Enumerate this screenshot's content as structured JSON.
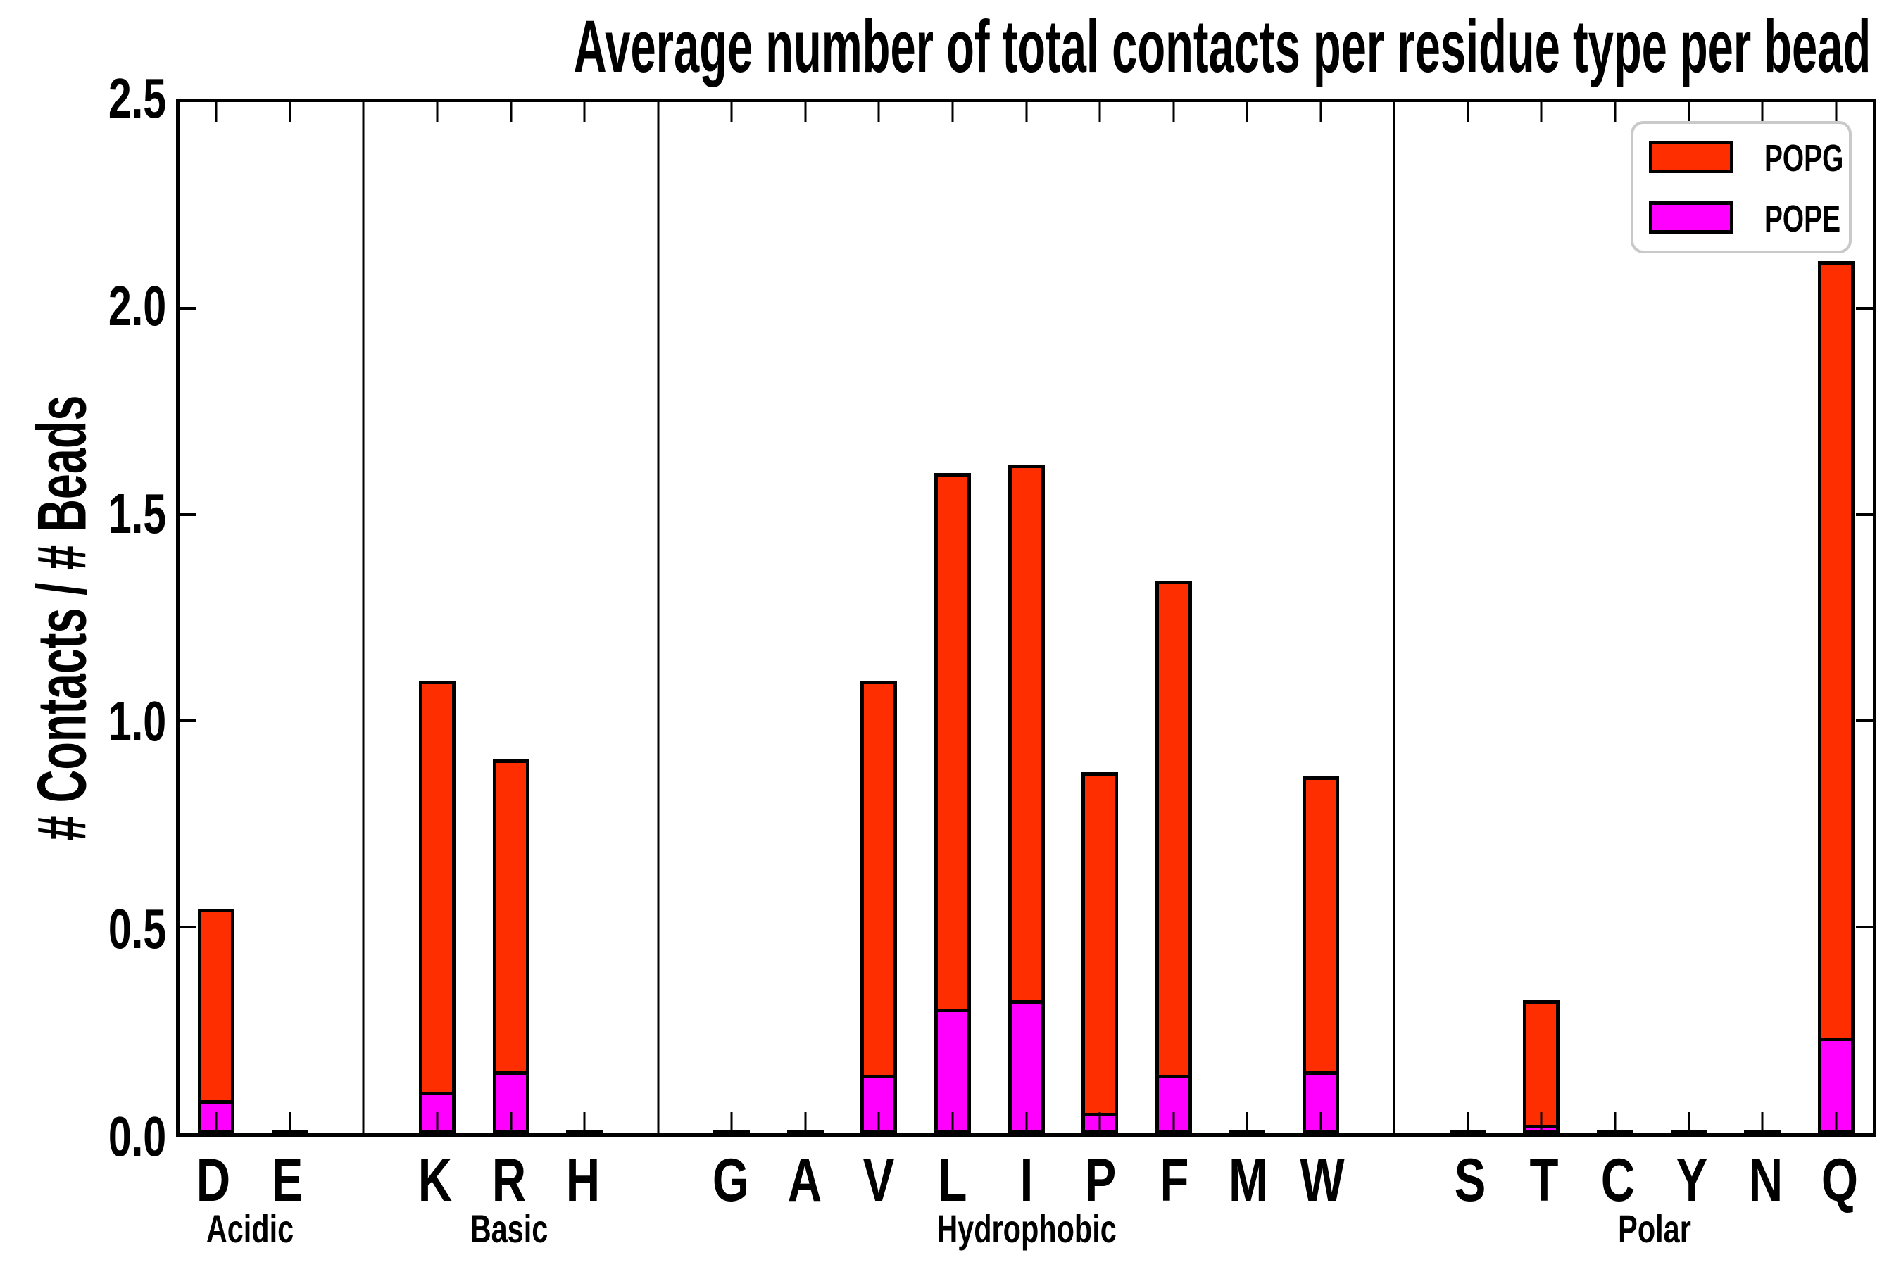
{
  "title": "Average number of total contacts per residue type per bead",
  "ylabel": "# Contacts / # Beads",
  "legend": {
    "entries": [
      {
        "label": "POPG",
        "color": "#FF2E00"
      },
      {
        "label": "POPE",
        "color": "#FF00FF"
      }
    ]
  },
  "colors": {
    "popg": "#FF2E00",
    "pope": "#FF00FF",
    "axis": "#000000",
    "legend_border": "#c9c9c9"
  },
  "y_tick_labels": [
    "0.0",
    "0.5",
    "1.0",
    "1.5",
    "2.0",
    "2.5"
  ],
  "chart_data": {
    "type": "bar",
    "stacked": true,
    "title": "Average number of total contacts per residue type per bead",
    "xlabel": "",
    "ylabel": "# Contacts / # Beads",
    "ylim": [
      0,
      2.5
    ],
    "y_ticks": [
      0.0,
      0.5,
      1.0,
      1.5,
      2.0,
      2.5
    ],
    "grid": false,
    "legend_position": "upper right",
    "categories": [
      "D",
      "E",
      "K",
      "R",
      "H",
      "G",
      "A",
      "V",
      "L",
      "I",
      "P",
      "F",
      "M",
      "W",
      "S",
      "T",
      "C",
      "Y",
      "N",
      "Q"
    ],
    "groups": [
      {
        "label": "Acidic",
        "categories": [
          "D",
          "E"
        ]
      },
      {
        "label": "Basic",
        "categories": [
          "K",
          "R",
          "H"
        ]
      },
      {
        "label": "Hydrophobic",
        "categories": [
          "G",
          "A",
          "V",
          "L",
          "I",
          "P",
          "F",
          "M",
          "W"
        ]
      },
      {
        "label": "Polar",
        "categories": [
          "S",
          "T",
          "C",
          "Y",
          "N",
          "Q"
        ]
      }
    ],
    "series": [
      {
        "name": "POPE",
        "color": "#FF00FF",
        "values": [
          0.08,
          0.0,
          0.1,
          0.15,
          0.0,
          0.0,
          0.0,
          0.14,
          0.3,
          0.32,
          0.05,
          0.14,
          0.0,
          0.15,
          0.0,
          0.02,
          0.0,
          0.0,
          0.0,
          0.23
        ]
      },
      {
        "name": "POPG",
        "color": "#FF2E00",
        "values": [
          0.46,
          0.0,
          0.99,
          0.75,
          0.0,
          0.0,
          0.0,
          0.95,
          1.29,
          1.29,
          0.82,
          1.19,
          0.0,
          0.71,
          0.0,
          0.3,
          0.0,
          0.0,
          0.0,
          1.87
        ]
      }
    ],
    "totals": [
      0.54,
      0.0,
      1.09,
      0.9,
      0.0,
      0.0,
      0.0,
      1.09,
      1.59,
      1.61,
      0.87,
      1.33,
      0.0,
      0.86,
      0.0,
      0.32,
      0.0,
      0.0,
      0.0,
      2.1
    ]
  }
}
